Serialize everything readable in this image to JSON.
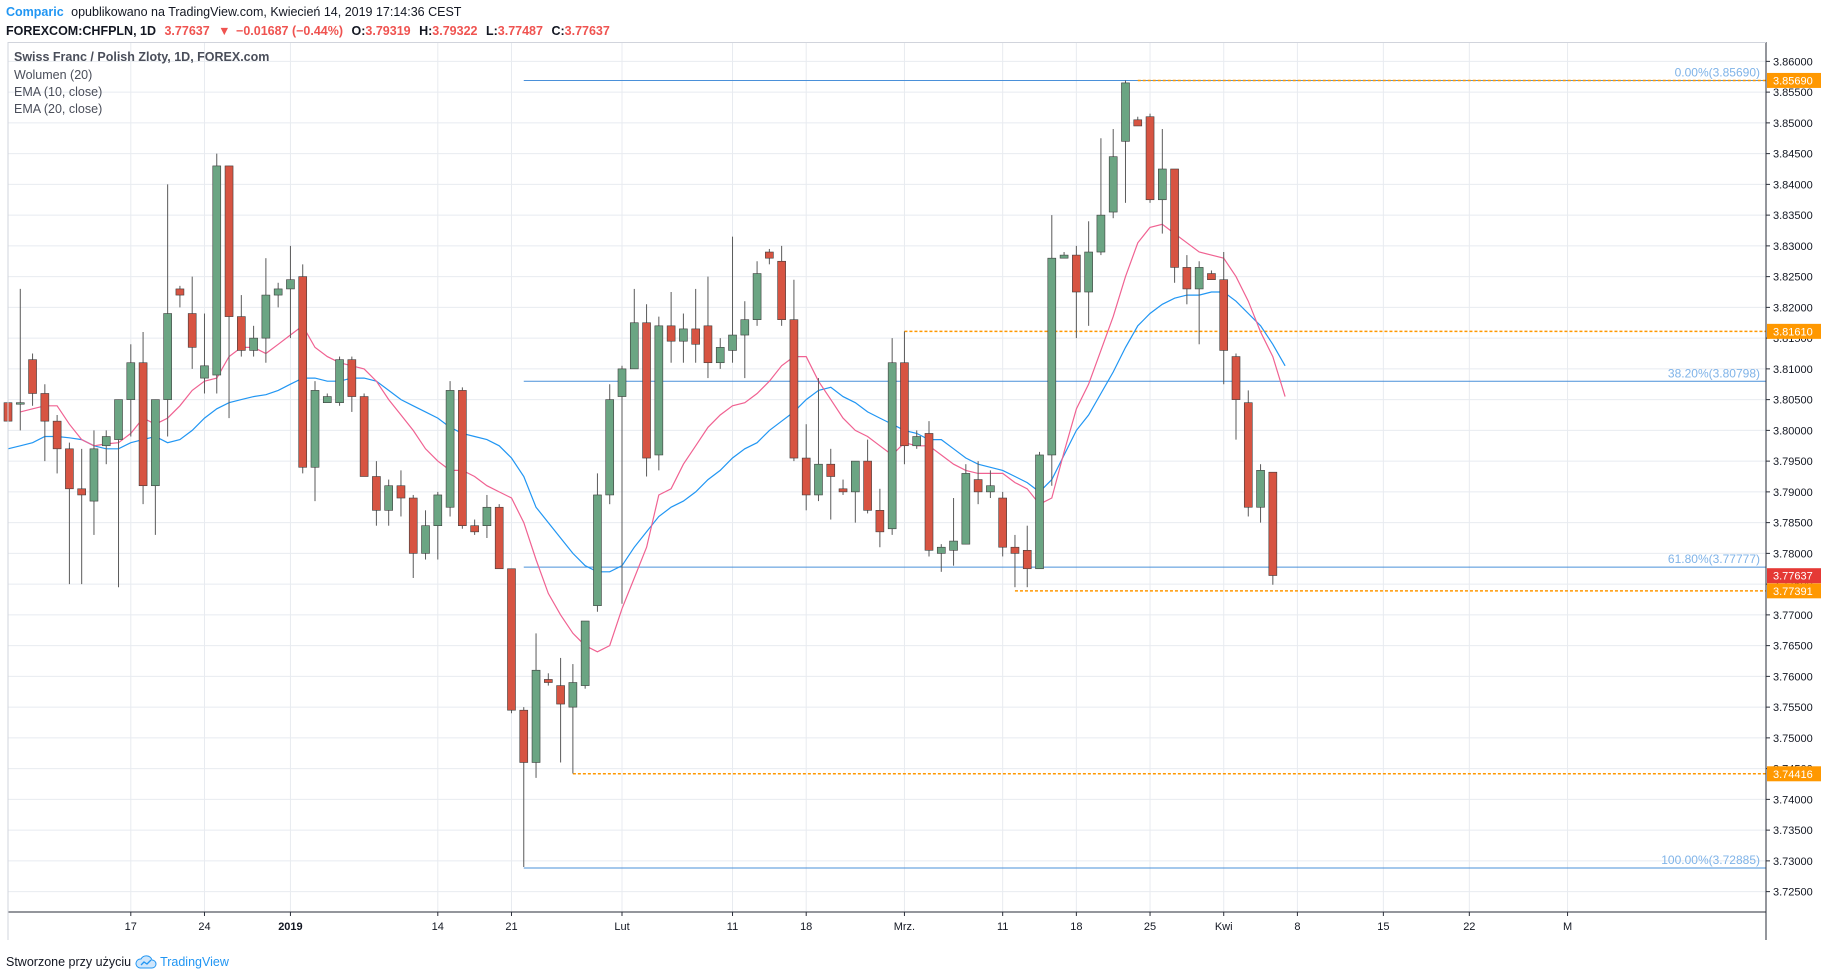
{
  "header": {
    "author": "Comparic",
    "published": "opublikowano na TradingView.com, Kwiecień 14, 2019 17:14:36 CEST",
    "symbol": "FOREXCOM:CHFPLN, 1D",
    "last": "3.77637",
    "change_arrow": "▼",
    "change": "−0.01687 (−0.44%)",
    "o_label": "O:",
    "o_value": "3.79319",
    "h_label": "H:",
    "h_value": "3.79322",
    "l_label": "L:",
    "l_value": "3.77487",
    "c_label": "C:",
    "c_value": "3.77637"
  },
  "legend": {
    "title": "Swiss Franc / Polish Zloty, 1D, FOREX.com",
    "items": [
      "Wolumen (20)",
      "EMA (10, close)",
      "EMA (20, close)"
    ]
  },
  "footer": {
    "created": "Stworzone przy użyciu",
    "brand": "TradingView",
    "brand_icon": "tradingview-cloud-icon"
  },
  "colors": {
    "up": "#6ba583",
    "down": "#d75442",
    "wick": "#5a5a5a",
    "ema10": "#f06292",
    "ema20": "#2196f3",
    "fib": "#4a90d9",
    "fib_text": "#7fb3e8",
    "level": "#ff9800",
    "grid": "#e8ebf0",
    "last_price_bg": "#e53935"
  },
  "chart_data": {
    "type": "candlestick",
    "ylim": [
      3.7225,
      3.8625
    ],
    "y_ticks": [
      "3.86000",
      "3.85500",
      "3.85000",
      "3.84500",
      "3.84000",
      "3.83500",
      "3.83000",
      "3.82500",
      "3.82000",
      "3.81500",
      "3.81000",
      "3.80500",
      "3.80000",
      "3.79500",
      "3.79000",
      "3.78500",
      "3.78000",
      "3.77500",
      "3.77000",
      "3.76500",
      "3.76000",
      "3.75500",
      "3.75000",
      "3.74500",
      "3.74000",
      "3.73500",
      "3.73000",
      "3.72500"
    ],
    "x_labels": [
      "17",
      "24",
      "2019",
      "14",
      "21",
      "Lut",
      "11",
      "18",
      "Mrz.",
      "11",
      "18",
      "25",
      "Kwi",
      "8",
      "15",
      "22",
      "M"
    ],
    "x_label_index": [
      10,
      16,
      23,
      35,
      41,
      50,
      59,
      65,
      73,
      81,
      87,
      93,
      99,
      105,
      112,
      119,
      127
    ],
    "candles": [
      {
        "o": 3.8045,
        "h": 3.81,
        "l": 3.7955,
        "c": 3.8015
      },
      {
        "o": 3.8045,
        "h": 3.823,
        "l": 3.8,
        "c": 3.8045
      },
      {
        "o": 3.8115,
        "h": 3.8125,
        "l": 3.804,
        "c": 3.806
      },
      {
        "o": 3.806,
        "h": 3.8075,
        "l": 3.795,
        "c": 3.8015
      },
      {
        "o": 3.8015,
        "h": 3.8025,
        "l": 3.793,
        "c": 3.797
      },
      {
        "o": 3.797,
        "h": 3.798,
        "l": 3.775,
        "c": 3.7905
      },
      {
        "o": 3.7905,
        "h": 3.797,
        "l": 3.775,
        "c": 3.7895
      },
      {
        "o": 3.7885,
        "h": 3.8,
        "l": 3.783,
        "c": 3.797
      },
      {
        "o": 3.7975,
        "h": 3.8,
        "l": 3.7945,
        "c": 3.799
      },
      {
        "o": 3.7985,
        "h": 3.805,
        "l": 3.7745,
        "c": 3.805
      },
      {
        "o": 3.805,
        "h": 3.814,
        "l": 3.799,
        "c": 3.811
      },
      {
        "o": 3.811,
        "h": 3.816,
        "l": 3.788,
        "c": 3.791
      },
      {
        "o": 3.791,
        "h": 3.805,
        "l": 3.783,
        "c": 3.805
      },
      {
        "o": 3.805,
        "h": 3.84,
        "l": 3.799,
        "c": 3.819
      },
      {
        "o": 3.823,
        "h": 3.8235,
        "l": 3.82,
        "c": 3.822
      },
      {
        "o": 3.819,
        "h": 3.825,
        "l": 3.81,
        "c": 3.8135
      },
      {
        "o": 3.8085,
        "h": 3.819,
        "l": 3.806,
        "c": 3.8105
      },
      {
        "o": 3.809,
        "h": 3.845,
        "l": 3.806,
        "c": 3.843
      },
      {
        "o": 3.843,
        "h": 3.843,
        "l": 3.802,
        "c": 3.8185
      },
      {
        "o": 3.8185,
        "h": 3.822,
        "l": 3.812,
        "c": 3.813
      },
      {
        "o": 3.813,
        "h": 3.817,
        "l": 3.812,
        "c": 3.815
      },
      {
        "o": 3.815,
        "h": 3.828,
        "l": 3.811,
        "c": 3.822
      },
      {
        "o": 3.822,
        "h": 3.824,
        "l": 3.82,
        "c": 3.823
      },
      {
        "o": 3.823,
        "h": 3.83,
        "l": 3.815,
        "c": 3.8245
      },
      {
        "o": 3.825,
        "h": 3.827,
        "l": 3.793,
        "c": 3.794
      },
      {
        "o": 3.794,
        "h": 3.808,
        "l": 3.7885,
        "c": 3.8065
      },
      {
        "o": 3.8045,
        "h": 3.806,
        "l": 3.8045,
        "c": 3.8055
      },
      {
        "o": 3.8045,
        "h": 3.812,
        "l": 3.804,
        "c": 3.8115
      },
      {
        "o": 3.8115,
        "h": 3.812,
        "l": 3.803,
        "c": 3.8055
      },
      {
        "o": 3.8055,
        "h": 3.806,
        "l": 3.7925,
        "c": 3.7925
      },
      {
        "o": 3.7925,
        "h": 3.795,
        "l": 3.7845,
        "c": 3.787
      },
      {
        "o": 3.787,
        "h": 3.792,
        "l": 3.7845,
        "c": 3.791
      },
      {
        "o": 3.791,
        "h": 3.7935,
        "l": 3.786,
        "c": 3.789
      },
      {
        "o": 3.789,
        "h": 3.7895,
        "l": 3.776,
        "c": 3.78
      },
      {
        "o": 3.78,
        "h": 3.787,
        "l": 3.779,
        "c": 3.7845
      },
      {
        "o": 3.7845,
        "h": 3.79,
        "l": 3.779,
        "c": 3.7895
      },
      {
        "o": 3.7875,
        "h": 3.808,
        "l": 3.786,
        "c": 3.8065
      },
      {
        "o": 3.8065,
        "h": 3.807,
        "l": 3.784,
        "c": 3.7845
      },
      {
        "o": 3.7845,
        "h": 3.7855,
        "l": 3.783,
        "c": 3.7835
      },
      {
        "o": 3.7845,
        "h": 3.7895,
        "l": 3.7825,
        "c": 3.7875
      },
      {
        "o": 3.7875,
        "h": 3.788,
        "l": 3.778,
        "c": 3.7775
      },
      {
        "o": 3.7775,
        "h": 3.7775,
        "l": 3.754,
        "c": 3.7545
      },
      {
        "o": 3.7545,
        "h": 3.755,
        "l": 3.729,
        "c": 3.746
      },
      {
        "o": 3.746,
        "h": 3.767,
        "l": 3.7435,
        "c": 3.761
      },
      {
        "o": 3.7595,
        "h": 3.7605,
        "l": 3.7585,
        "c": 3.759
      },
      {
        "o": 3.7585,
        "h": 3.763,
        "l": 3.746,
        "c": 3.7555
      },
      {
        "o": 3.755,
        "h": 3.762,
        "l": 3.7442,
        "c": 3.759
      },
      {
        "o": 3.7585,
        "h": 3.769,
        "l": 3.758,
        "c": 3.769
      },
      {
        "o": 3.7715,
        "h": 3.793,
        "l": 3.7705,
        "c": 3.7895
      },
      {
        "o": 3.7895,
        "h": 3.8075,
        "l": 3.788,
        "c": 3.805
      },
      {
        "o": 3.8055,
        "h": 3.8105,
        "l": 3.7718,
        "c": 3.81
      },
      {
        "o": 3.81,
        "h": 3.823,
        "l": 3.81,
        "c": 3.8175
      },
      {
        "o": 3.8175,
        "h": 3.8205,
        "l": 3.7925,
        "c": 3.7955
      },
      {
        "o": 3.796,
        "h": 3.8185,
        "l": 3.7935,
        "c": 3.817
      },
      {
        "o": 3.817,
        "h": 3.8225,
        "l": 3.811,
        "c": 3.8145
      },
      {
        "o": 3.8145,
        "h": 3.819,
        "l": 3.811,
        "c": 3.8165
      },
      {
        "o": 3.8165,
        "h": 3.823,
        "l": 3.811,
        "c": 3.814
      },
      {
        "o": 3.817,
        "h": 3.825,
        "l": 3.8085,
        "c": 3.811
      },
      {
        "o": 3.811,
        "h": 3.815,
        "l": 3.81,
        "c": 3.8135
      },
      {
        "o": 3.813,
        "h": 3.8315,
        "l": 3.811,
        "c": 3.8155
      },
      {
        "o": 3.8155,
        "h": 3.821,
        "l": 3.8085,
        "c": 3.818
      },
      {
        "o": 3.818,
        "h": 3.8275,
        "l": 3.817,
        "c": 3.8255
      },
      {
        "o": 3.829,
        "h": 3.8295,
        "l": 3.827,
        "c": 3.828
      },
      {
        "o": 3.8275,
        "h": 3.83,
        "l": 3.817,
        "c": 3.818
      },
      {
        "o": 3.818,
        "h": 3.8245,
        "l": 3.795,
        "c": 3.7955
      },
      {
        "o": 3.7955,
        "h": 3.801,
        "l": 3.787,
        "c": 3.7895
      },
      {
        "o": 3.7895,
        "h": 3.8085,
        "l": 3.7885,
        "c": 3.7945
      },
      {
        "o": 3.7945,
        "h": 3.797,
        "l": 3.7855,
        "c": 3.7925
      },
      {
        "o": 3.7905,
        "h": 3.792,
        "l": 3.7895,
        "c": 3.79
      },
      {
        "o": 3.79,
        "h": 3.795,
        "l": 3.785,
        "c": 3.795
      },
      {
        "o": 3.795,
        "h": 3.7985,
        "l": 3.7865,
        "c": 3.787
      },
      {
        "o": 3.787,
        "h": 3.7905,
        "l": 3.781,
        "c": 3.7835
      },
      {
        "o": 3.784,
        "h": 3.815,
        "l": 3.783,
        "c": 3.811
      },
      {
        "o": 3.811,
        "h": 3.8161,
        "l": 3.7945,
        "c": 3.7975
      },
      {
        "o": 3.7975,
        "h": 3.8,
        "l": 3.797,
        "c": 3.799
      },
      {
        "o": 3.7995,
        "h": 3.8015,
        "l": 3.7795,
        "c": 3.7805
      },
      {
        "o": 3.78,
        "h": 3.7815,
        "l": 3.777,
        "c": 3.781
      },
      {
        "o": 3.7805,
        "h": 3.789,
        "l": 3.778,
        "c": 3.782
      },
      {
        "o": 3.7815,
        "h": 3.7945,
        "l": 3.7815,
        "c": 3.793
      },
      {
        "o": 3.792,
        "h": 3.795,
        "l": 3.788,
        "c": 3.79
      },
      {
        "o": 3.79,
        "h": 3.7935,
        "l": 3.789,
        "c": 3.791
      },
      {
        "o": 3.789,
        "h": 3.79,
        "l": 3.7795,
        "c": 3.781
      },
      {
        "o": 3.781,
        "h": 3.783,
        "l": 3.7745,
        "c": 3.78
      },
      {
        "o": 3.7805,
        "h": 3.7845,
        "l": 3.7745,
        "c": 3.7775
      },
      {
        "o": 3.7775,
        "h": 3.7965,
        "l": 3.7775,
        "c": 3.796
      },
      {
        "o": 3.796,
        "h": 3.835,
        "l": 3.791,
        "c": 3.828
      },
      {
        "o": 3.828,
        "h": 3.829,
        "l": 3.828,
        "c": 3.8285
      },
      {
        "o": 3.8285,
        "h": 3.83,
        "l": 3.815,
        "c": 3.8225
      },
      {
        "o": 3.8225,
        "h": 3.834,
        "l": 3.817,
        "c": 3.829
      },
      {
        "o": 3.829,
        "h": 3.8475,
        "l": 3.8285,
        "c": 3.835
      },
      {
        "o": 3.8355,
        "h": 3.849,
        "l": 3.8345,
        "c": 3.8445
      },
      {
        "o": 3.847,
        "h": 3.8569,
        "l": 3.837,
        "c": 3.8565
      },
      {
        "o": 3.8505,
        "h": 3.851,
        "l": 3.8495,
        "c": 3.8495
      },
      {
        "o": 3.851,
        "h": 3.8515,
        "l": 3.837,
        "c": 3.8375
      },
      {
        "o": 3.8375,
        "h": 3.849,
        "l": 3.832,
        "c": 3.8425
      },
      {
        "o": 3.8425,
        "h": 3.8425,
        "l": 3.824,
        "c": 3.8265
      },
      {
        "o": 3.8265,
        "h": 3.8285,
        "l": 3.8205,
        "c": 3.823
      },
      {
        "o": 3.823,
        "h": 3.8275,
        "l": 3.814,
        "c": 3.8265
      },
      {
        "o": 3.8255,
        "h": 3.826,
        "l": 3.8245,
        "c": 3.8245
      },
      {
        "o": 3.8245,
        "h": 3.829,
        "l": 3.8075,
        "c": 3.813
      },
      {
        "o": 3.812,
        "h": 3.8125,
        "l": 3.7985,
        "c": 3.805
      },
      {
        "o": 3.8045,
        "h": 3.8065,
        "l": 3.786,
        "c": 3.7875
      },
      {
        "o": 3.7875,
        "h": 3.7945,
        "l": 3.785,
        "c": 3.7935
      },
      {
        "o": 3.7932,
        "h": 3.7932,
        "l": 3.7749,
        "c": 3.7764
      }
    ],
    "ema10": {
      "start": 1,
      "values": [
        3.803,
        3.8035,
        3.804,
        3.804,
        3.801,
        3.7985,
        3.7975,
        3.7978,
        3.798,
        3.7995,
        3.802,
        3.801,
        3.802,
        3.804,
        3.8065,
        3.808,
        3.8085,
        3.812,
        3.8135,
        3.8135,
        3.8125,
        3.814,
        3.8155,
        3.817,
        3.8135,
        3.812,
        3.811,
        3.8105,
        3.81,
        3.808,
        3.805,
        3.8025,
        3.8,
        3.797,
        3.795,
        3.7935,
        3.7935,
        3.7925,
        3.791,
        3.79,
        3.789,
        3.785,
        3.779,
        3.7735,
        3.77,
        3.767,
        3.765,
        3.764,
        3.765,
        3.771,
        3.776,
        3.781,
        3.7895,
        3.7905,
        3.7945,
        3.7975,
        3.8005,
        3.8025,
        3.804,
        3.8045,
        3.806,
        3.808,
        3.8105,
        3.812,
        3.812,
        3.808,
        3.805,
        3.802,
        3.8,
        3.799,
        3.7975,
        3.796,
        3.798,
        3.7975,
        3.7975,
        3.796,
        3.7945,
        3.7935,
        3.793,
        3.793,
        3.793,
        3.7915,
        3.7905,
        3.788,
        3.789,
        3.7965,
        3.8035,
        3.8075,
        3.813,
        3.8185,
        3.825,
        3.8305,
        3.833,
        3.8335,
        3.832,
        3.8305,
        3.829,
        3.8285,
        3.828,
        3.825,
        3.821,
        3.816,
        3.812,
        3.8055
      ]
    },
    "ema20": {
      "start": 0,
      "values": [
        3.797,
        3.7975,
        3.798,
        3.799,
        3.799,
        3.7988,
        3.7985,
        3.7975,
        3.797,
        3.797,
        3.798,
        3.7985,
        3.799,
        3.798,
        3.7985,
        3.8,
        3.802,
        3.8035,
        3.8045,
        3.805,
        3.8055,
        3.8058,
        3.8065,
        3.8075,
        3.8085,
        3.8085,
        3.808,
        3.808,
        3.8085,
        3.8085,
        3.808,
        3.8065,
        3.805,
        3.804,
        3.803,
        3.802,
        3.8005,
        3.7995,
        3.799,
        3.7985,
        3.7975,
        3.7955,
        3.7925,
        3.7875,
        3.785,
        3.7825,
        3.78,
        3.778,
        3.777,
        3.777,
        3.778,
        3.781,
        3.7835,
        3.786,
        3.7875,
        3.7885,
        3.79,
        3.792,
        3.7935,
        3.7955,
        3.797,
        3.798,
        3.8,
        3.8015,
        3.803,
        3.805,
        3.8065,
        3.807,
        3.8055,
        3.8045,
        3.803,
        3.802,
        3.801,
        3.8,
        3.7995,
        3.7985,
        3.7985,
        3.797,
        3.7955,
        3.7945,
        3.794,
        3.7935,
        3.7925,
        3.7915,
        3.79,
        3.792,
        3.796,
        3.8,
        3.8025,
        3.806,
        3.8095,
        3.8135,
        3.817,
        3.819,
        3.8205,
        3.8215,
        3.822,
        3.822,
        3.8225,
        3.8225,
        3.821,
        3.819,
        3.817,
        3.814,
        3.8105
      ]
    },
    "fib_start_index": 42,
    "fibs": [
      {
        "label": "0.00%(3.85690)",
        "value": 3.8569
      },
      {
        "label": "38.20%(3.80798)",
        "value": 3.80798
      },
      {
        "label": "61.80%(3.77777)",
        "value": 3.77777
      },
      {
        "label": "100.00%(3.72885)",
        "value": 3.72885
      }
    ],
    "levels": [
      {
        "label": "3.85690",
        "value": 3.8569,
        "start_index": 92
      },
      {
        "label": "3.81610",
        "value": 3.8161,
        "start_index": 73
      },
      {
        "label": "3.77391",
        "value": 3.77391,
        "start_index": 82
      },
      {
        "label": "3.74416",
        "value": 3.74416,
        "start_index": 46
      }
    ],
    "last_price": {
      "label": "3.77637",
      "value": 3.77637
    }
  }
}
